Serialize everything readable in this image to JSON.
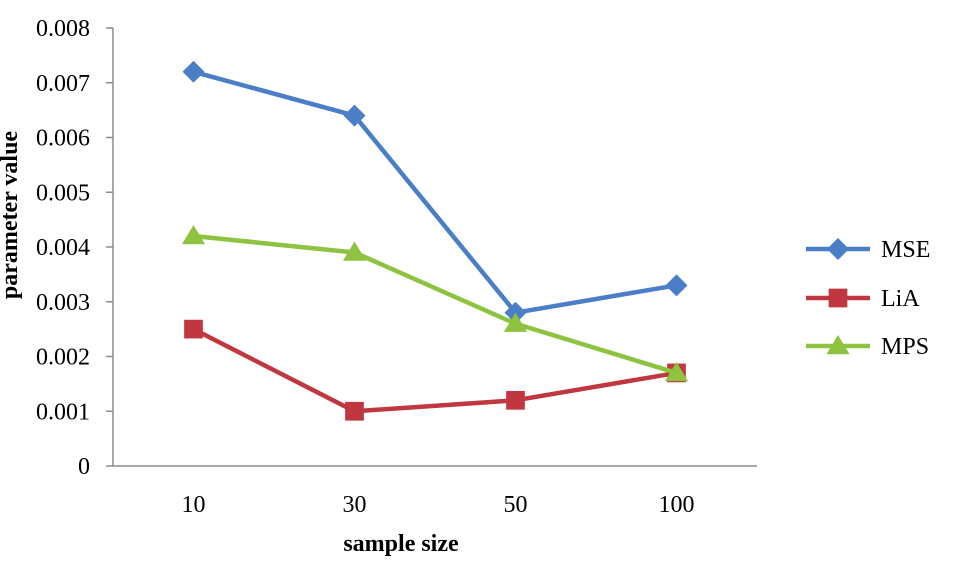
{
  "chart_data": {
    "type": "line",
    "title": "",
    "xlabel": "sample size",
    "ylabel": "parameter value",
    "categories": [
      "10",
      "30",
      "50",
      "100"
    ],
    "ylim": [
      0,
      0.008
    ],
    "yticks": [
      "0",
      "0.001",
      "0.002",
      "0.003",
      "0.004",
      "0.005",
      "0.006",
      "0.007",
      "0.008"
    ],
    "grid": false,
    "legend_position": "right",
    "series": [
      {
        "name": "MSE",
        "values": [
          0.0072,
          0.0064,
          0.0028,
          0.0033
        ],
        "color": "#4A7EC7",
        "marker": "diamond"
      },
      {
        "name": "LiA",
        "values": [
          0.0025,
          0.001,
          0.0012,
          0.0017
        ],
        "color": "#C0373F",
        "marker": "square"
      },
      {
        "name": "MPS",
        "values": [
          0.0042,
          0.0039,
          0.0026,
          0.0017
        ],
        "color": "#8DC33F",
        "marker": "triangle"
      }
    ]
  }
}
